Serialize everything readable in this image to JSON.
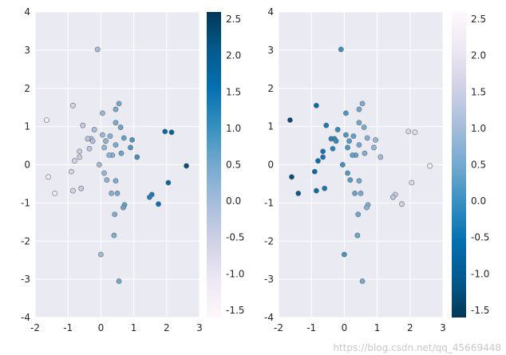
{
  "watermark": "https://blog.csdn.net/qq_45669448",
  "chart_data": [
    {
      "type": "scatter",
      "colormap": "PuBu",
      "xlim": [
        -2,
        3
      ],
      "ylim": [
        -4,
        4
      ],
      "x_ticks": [
        "-2",
        "-1",
        "0",
        "1",
        "2",
        "3"
      ],
      "y_ticks": [
        "4",
        "3",
        "2",
        "1",
        "0",
        "-1",
        "-2",
        "-3",
        "-4"
      ],
      "colorbar": {
        "range": [
          -1.6,
          2.6
        ],
        "ticks": [
          "2.5",
          "2.0",
          "1.5",
          "1.0",
          "0.5",
          "0.0",
          "-0.5",
          "-1.0",
          "-1.5"
        ]
      },
      "grid": true,
      "background": "#eaeaf2",
      "points": [
        {
          "x": -0.1,
          "y": 3.02
        },
        {
          "x": -1.65,
          "y": 1.17
        },
        {
          "x": -0.85,
          "y": 1.55
        },
        {
          "x": -0.55,
          "y": 1.03
        },
        {
          "x": -0.3,
          "y": 0.68
        },
        {
          "x": -0.25,
          "y": 0.62
        },
        {
          "x": -0.4,
          "y": 0.68
        },
        {
          "x": -0.65,
          "y": 0.35
        },
        {
          "x": -0.8,
          "y": 0.1
        },
        {
          "x": -0.65,
          "y": 0.2
        },
        {
          "x": -0.9,
          "y": -0.18
        },
        {
          "x": -1.6,
          "y": -0.32
        },
        {
          "x": -1.4,
          "y": -0.75
        },
        {
          "x": -0.85,
          "y": -0.68
        },
        {
          "x": -0.6,
          "y": -0.62
        },
        {
          "x": -0.35,
          "y": 0.42
        },
        {
          "x": -0.2,
          "y": 0.92
        },
        {
          "x": 0.05,
          "y": 1.35
        },
        {
          "x": 0.45,
          "y": 1.45
        },
        {
          "x": 0.55,
          "y": 1.6
        },
        {
          "x": 0.45,
          "y": 1.1
        },
        {
          "x": 0.6,
          "y": 0.98
        },
        {
          "x": 0.15,
          "y": 0.62
        },
        {
          "x": 0.05,
          "y": 0.78
        },
        {
          "x": 0.28,
          "y": 0.75
        },
        {
          "x": 0.1,
          "y": 0.45
        },
        {
          "x": 0.45,
          "y": 0.52
        },
        {
          "x": 0.35,
          "y": 0.25
        },
        {
          "x": 0.25,
          "y": 0.25
        },
        {
          "x": 0.7,
          "y": 0.7
        },
        {
          "x": 0.95,
          "y": 0.65
        },
        {
          "x": 0.9,
          "y": 0.45
        },
        {
          "x": 0.62,
          "y": 0.3
        },
        {
          "x": 1.1,
          "y": 0.2
        },
        {
          "x": -0.05,
          "y": 0.0
        },
        {
          "x": 0.1,
          "y": -0.22
        },
        {
          "x": 0.18,
          "y": -0.4
        },
        {
          "x": 0.45,
          "y": -0.42
        },
        {
          "x": 0.5,
          "y": -0.75
        },
        {
          "x": 0.32,
          "y": -0.75
        },
        {
          "x": 0.42,
          "y": -1.3
        },
        {
          "x": 0.72,
          "y": -1.05
        },
        {
          "x": 0.68,
          "y": -1.12
        },
        {
          "x": 0.4,
          "y": -1.85
        },
        {
          "x": 0.0,
          "y": -2.35
        },
        {
          "x": 0.55,
          "y": -3.05
        },
        {
          "x": 1.95,
          "y": 0.87
        },
        {
          "x": 2.15,
          "y": 0.85
        },
        {
          "x": 2.6,
          "y": -0.03
        },
        {
          "x": 2.05,
          "y": -0.47
        },
        {
          "x": 1.55,
          "y": -0.78
        },
        {
          "x": 1.48,
          "y": -0.85
        },
        {
          "x": 1.75,
          "y": -1.03
        }
      ]
    },
    {
      "type": "scatter",
      "colormap": "PuBu_r",
      "xlim": [
        -2,
        3
      ],
      "ylim": [
        -4,
        4
      ],
      "x_ticks": [
        "-2",
        "-1",
        "0",
        "1",
        "2",
        "3"
      ],
      "y_ticks": [
        "4",
        "3",
        "2",
        "1",
        "0",
        "-1",
        "-2",
        "-3",
        "-4"
      ],
      "colorbar": {
        "range": [
          -1.6,
          2.6
        ],
        "ticks": [
          "2.5",
          "2.0",
          "1.5",
          "1.0",
          "0.5",
          "0.0",
          "-0.5",
          "-1.0",
          "-1.5"
        ]
      },
      "grid": true,
      "background": "#eaeaf2"
    }
  ]
}
